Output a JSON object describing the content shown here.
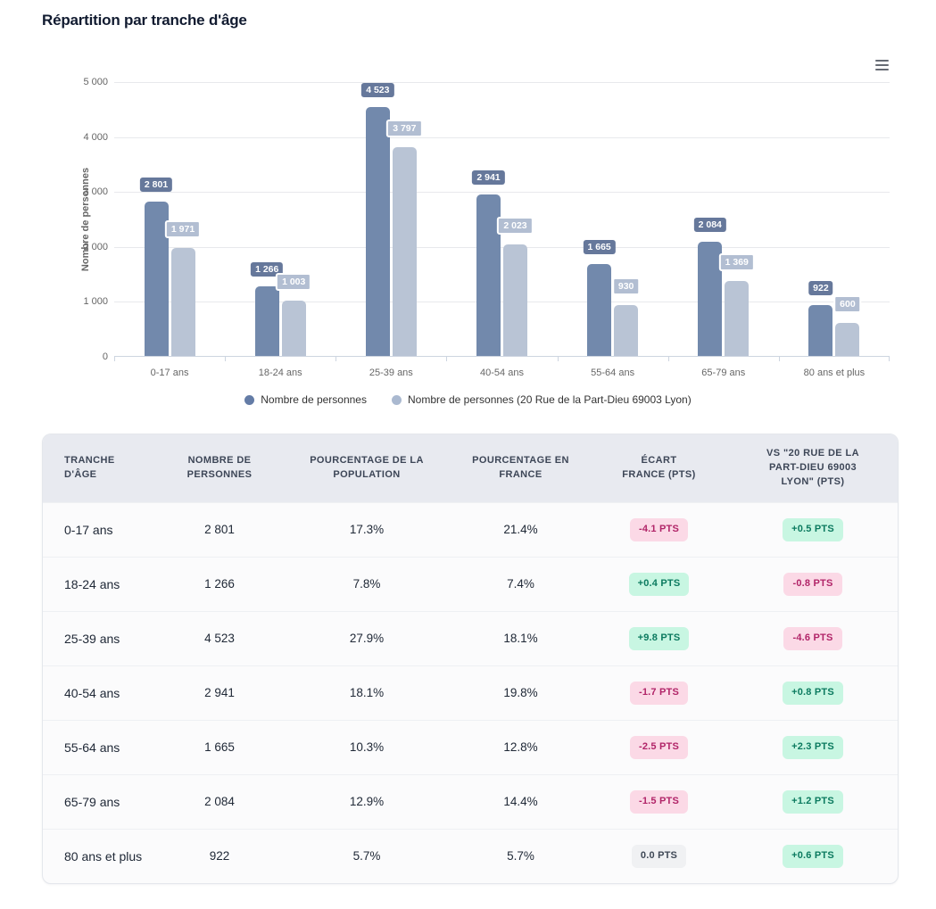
{
  "page": {
    "title": "Répartition par tranche d'âge"
  },
  "chart_data": {
    "type": "bar",
    "title": "Répartition par tranche d'âge",
    "xlabel": "",
    "ylabel": "Nombre de personnes",
    "ylim": [
      0,
      5000
    ],
    "grid": true,
    "legend_position": "bottom",
    "categories": [
      "0-17 ans",
      "18-24 ans",
      "25-39 ans",
      "40-54 ans",
      "55-64 ans",
      "65-79 ans",
      "80 ans et plus"
    ],
    "yticks": [
      {
        "value": 0,
        "label": "0"
      },
      {
        "value": 1000,
        "label": "1 000"
      },
      {
        "value": 2000,
        "label": "2 000"
      },
      {
        "value": 3000,
        "label": "3 000"
      },
      {
        "value": 4000,
        "label": "4 000"
      },
      {
        "value": 5000,
        "label": "5 000"
      }
    ],
    "series": [
      {
        "name": "Nombre de personnes",
        "color": "#7289ac",
        "legend_color": "#647ca6",
        "values": [
          2801,
          1266,
          4523,
          2941,
          1665,
          2084,
          922
        ],
        "labels": [
          "2 801",
          "1 266",
          "4 523",
          "2 941",
          "1 665",
          "2 084",
          "922"
        ]
      },
      {
        "name": "Nombre de personnes (20 Rue de la Part-Dieu 69003 Lyon)",
        "color": "#b9c4d5",
        "legend_color": "#aab9d0",
        "values": [
          1971,
          1003,
          3797,
          2023,
          930,
          1369,
          600
        ],
        "labels": [
          "1 971",
          "1 003",
          "3 797",
          "2 023",
          "930",
          "1 369",
          "600"
        ]
      }
    ]
  },
  "table": {
    "headers": [
      "TRANCHE\nD'ÂGE",
      "NOMBRE DE\nPERSONNES",
      "POURCENTAGE DE LA\nPOPULATION",
      "POURCENTAGE EN\nFRANCE",
      "ÉCART\nFRANCE (PTS)",
      "VS \"20 RUE DE LA\nPART-DIEU 69003\nLYON\" (PTS)"
    ],
    "rows": [
      {
        "age": "0-17 ans",
        "count": "2 801",
        "pct_population": "17.3%",
        "pct_france": "21.4%",
        "ecart_france": {
          "text": "-4.1 PTS",
          "type": "negative"
        },
        "vs_address": {
          "text": "+0.5 PTS",
          "type": "positive"
        }
      },
      {
        "age": "18-24 ans",
        "count": "1 266",
        "pct_population": "7.8%",
        "pct_france": "7.4%",
        "ecart_france": {
          "text": "+0.4 PTS",
          "type": "positive"
        },
        "vs_address": {
          "text": "-0.8 PTS",
          "type": "negative"
        }
      },
      {
        "age": "25-39 ans",
        "count": "4 523",
        "pct_population": "27.9%",
        "pct_france": "18.1%",
        "ecart_france": {
          "text": "+9.8 PTS",
          "type": "positive"
        },
        "vs_address": {
          "text": "-4.6 PTS",
          "type": "negative"
        }
      },
      {
        "age": "40-54 ans",
        "count": "2 941",
        "pct_population": "18.1%",
        "pct_france": "19.8%",
        "ecart_france": {
          "text": "-1.7 PTS",
          "type": "negative"
        },
        "vs_address": {
          "text": "+0.8 PTS",
          "type": "positive"
        }
      },
      {
        "age": "55-64 ans",
        "count": "1 665",
        "pct_population": "10.3%",
        "pct_france": "12.8%",
        "ecart_france": {
          "text": "-2.5 PTS",
          "type": "negative"
        },
        "vs_address": {
          "text": "+2.3 PTS",
          "type": "positive"
        }
      },
      {
        "age": "65-79 ans",
        "count": "2 084",
        "pct_population": "12.9%",
        "pct_france": "14.4%",
        "ecart_france": {
          "text": "-1.5 PTS",
          "type": "negative"
        },
        "vs_address": {
          "text": "+1.2 PTS",
          "type": "positive"
        }
      },
      {
        "age": "80 ans et plus",
        "count": "922",
        "pct_population": "5.7%",
        "pct_france": "5.7%",
        "ecart_france": {
          "text": "0.0 PTS",
          "type": "neutral"
        },
        "vs_address": {
          "text": "+0.6 PTS",
          "type": "positive"
        }
      }
    ]
  },
  "colors": {
    "series_dark": "#7289ac",
    "series_light": "#b9c4d5",
    "label_badge_dark": "#66789b",
    "label_badge_light": "#b2bed2",
    "positive_bg": "#c8f6e2",
    "positive_text": "#0b7a5f",
    "negative_bg": "#fbd9e6",
    "negative_text": "#b12468",
    "neutral_bg": "#f0f1f3",
    "neutral_text": "#3f4856",
    "header_bg": "#e8eaf0",
    "grid": "#e8e9ec",
    "axis_text": "#666666"
  }
}
